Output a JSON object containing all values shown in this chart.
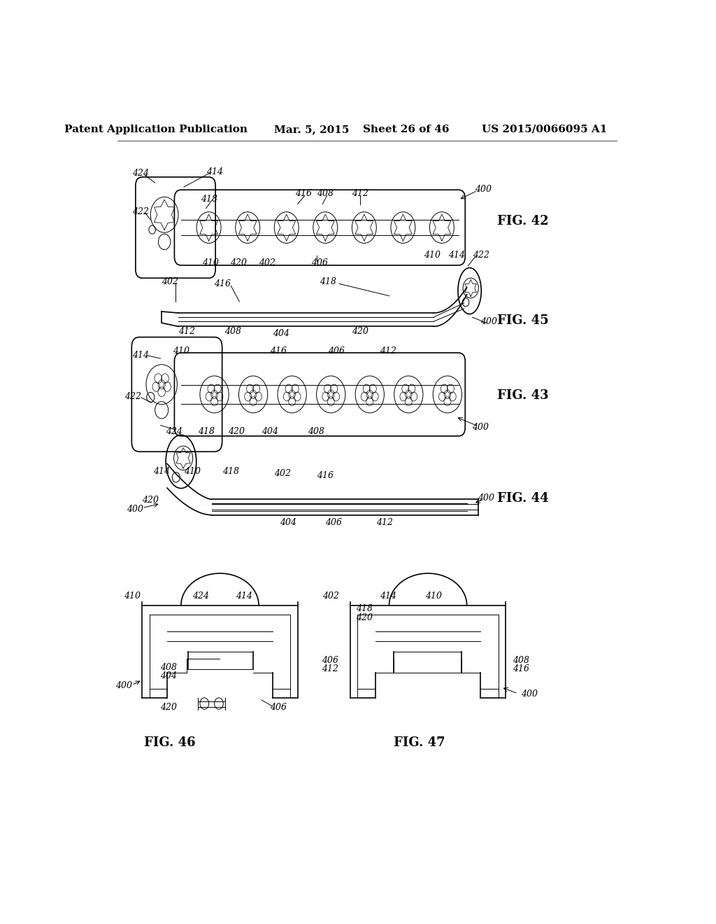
{
  "bg_color": "#ffffff",
  "header_text": "Patent Application Publication",
  "header_date": "Mar. 5, 2015",
  "header_sheet": "Sheet 26 of 46",
  "header_patent": "US 2015/0066095 A1",
  "text_color": "#000000",
  "line_color": "#000000",
  "header_fontsize": 11,
  "fig_label_fontsize": 13,
  "ref_num_fontsize": 9
}
